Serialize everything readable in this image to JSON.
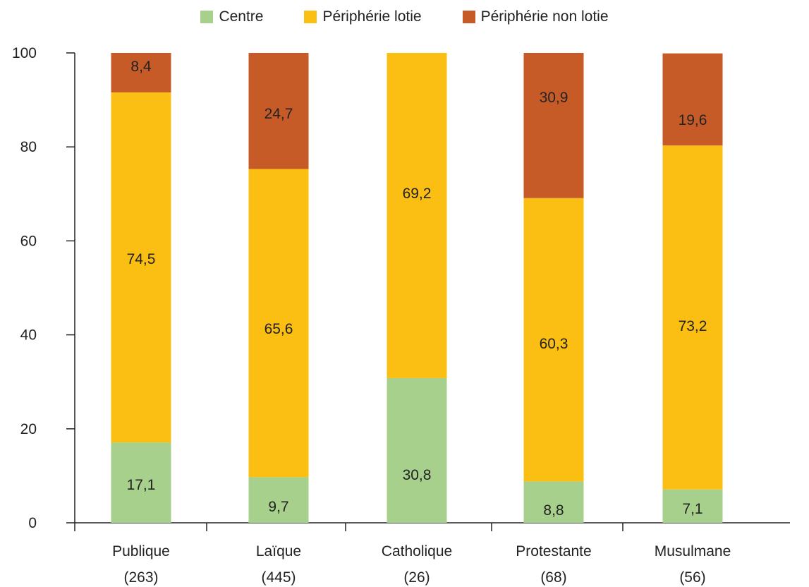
{
  "chart_data": {
    "type": "bar",
    "stacked": true,
    "categories": [
      "Publique",
      "Laïque",
      "Catholique",
      "Protestante",
      "Musulmane"
    ],
    "category_counts": [
      "(263)",
      "(445)",
      "(26)",
      "(68)",
      "(56)"
    ],
    "series": [
      {
        "name": "Centre",
        "color": "#a8d08d",
        "values": [
          17.1,
          9.7,
          30.8,
          8.8,
          7.1
        ],
        "labels": [
          "17,1",
          "9,7",
          "30,8",
          "8,8",
          "7,1"
        ]
      },
      {
        "name": "Périphérie lotie",
        "color": "#fbbe13",
        "values": [
          74.5,
          65.6,
          69.2,
          60.3,
          73.2
        ],
        "labels": [
          "74,5",
          "65,6",
          "69,2",
          "60,3",
          "73,2"
        ]
      },
      {
        "name": "Périphérie non lotie",
        "color": "#c65b27",
        "values": [
          8.4,
          24.7,
          0,
          30.9,
          19.6
        ],
        "labels": [
          "8,4",
          "24,7",
          "",
          "30,9",
          "19,6"
        ]
      }
    ],
    "ylim": [
      0,
      100
    ],
    "yticks": [
      0,
      20,
      40,
      60,
      80,
      100
    ],
    "grid": false,
    "legend_position": "top"
  }
}
